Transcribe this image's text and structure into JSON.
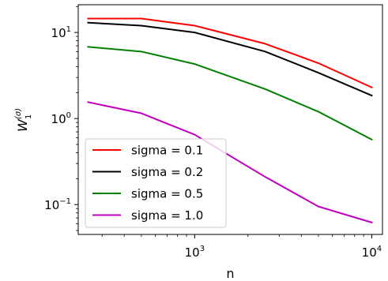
{
  "chart_data": {
    "type": "line",
    "title": "",
    "xlabel": "n",
    "ylabel_main": "W",
    "ylabel_sub": "1",
    "ylabel_sup": "(σ)",
    "x_scale": "log",
    "y_scale": "log",
    "xlim": [
      220,
      11500
    ],
    "ylim": [
      0.045,
      21
    ],
    "grid": false,
    "legend_position": "lower-left",
    "x_ticks": [
      {
        "value": 1000,
        "base": "10",
        "exp": "3"
      },
      {
        "value": 10000,
        "base": "10",
        "exp": "4"
      }
    ],
    "y_ticks": [
      {
        "value": 0.1,
        "base": "10",
        "exp": "−1"
      },
      {
        "value": 1,
        "base": "10",
        "exp": "0"
      },
      {
        "value": 10,
        "base": "10",
        "exp": "1"
      }
    ],
    "x": [
      250,
      500,
      1000,
      2500,
      5000,
      10000
    ],
    "series": [
      {
        "name": "sigma = 0.1",
        "color": "#ff0000",
        "values": [
          14.5,
          14.5,
          12.0,
          7.4,
          4.4,
          2.3
        ]
      },
      {
        "name": "sigma = 0.2",
        "color": "#000000",
        "values": [
          13.0,
          12.0,
          10.0,
          6.0,
          3.4,
          1.85
        ]
      },
      {
        "name": "sigma = 0.5",
        "color": "#008000",
        "values": [
          6.8,
          6.0,
          4.3,
          2.2,
          1.2,
          0.57
        ]
      },
      {
        "name": "sigma = 1.0",
        "color": "#c000c0",
        "values": [
          1.55,
          1.15,
          0.65,
          0.21,
          0.095,
          0.062
        ]
      }
    ]
  }
}
